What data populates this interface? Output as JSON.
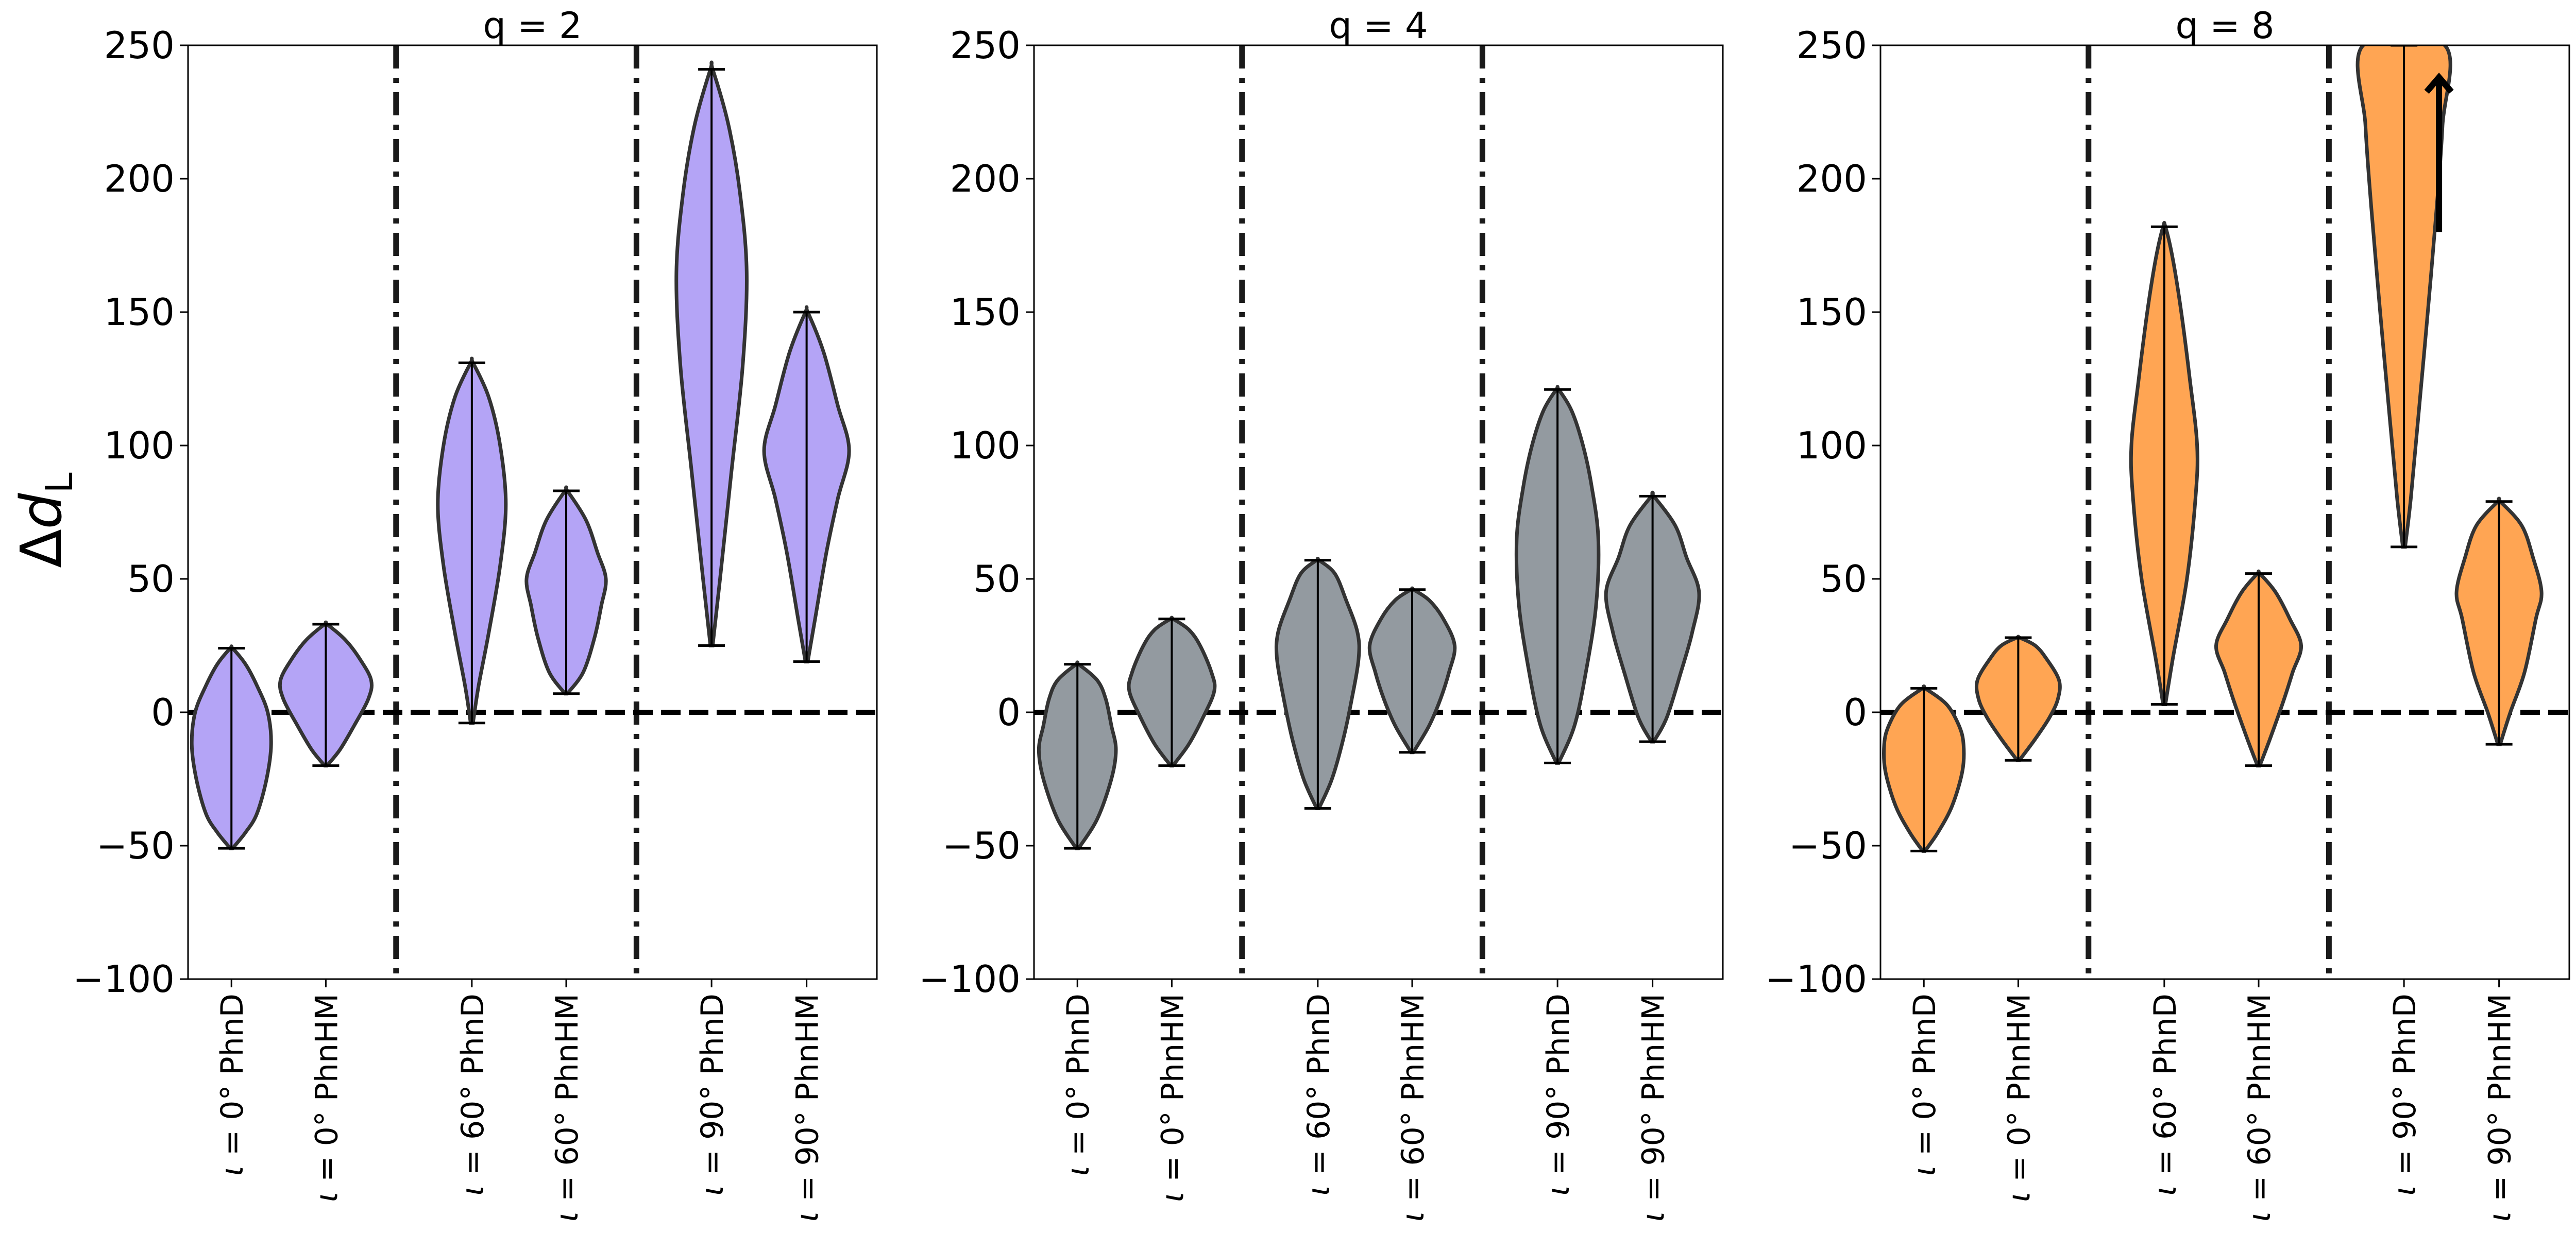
{
  "figure": {
    "ylabel_symbol": "Δ",
    "ylabel_var": "d",
    "ylabel_sub": "L"
  },
  "chart_data": [
    {
      "type": "violin",
      "title": "q = 2",
      "ylim": [
        -100,
        250
      ],
      "yticks": [
        -100,
        -50,
        0,
        50,
        100,
        150,
        200,
        250
      ],
      "ytick_labels": [
        "−100",
        "−50",
        "0",
        "50",
        "100",
        "150",
        "200",
        "250"
      ],
      "color": "#b4a4f6",
      "reference_line": 0,
      "groups": [
        "ι = 0°",
        "ι = 60°",
        "ι = 90°"
      ],
      "categories": [
        {
          "label_var": "ι",
          "label_rest": " = 0° PhnD",
          "min": -51,
          "max": 24,
          "profile": [
            [
              -51,
              0.02
            ],
            [
              -45,
              0.25
            ],
            [
              -38,
              0.45
            ],
            [
              -25,
              0.62
            ],
            [
              -12,
              0.7
            ],
            [
              0,
              0.64
            ],
            [
              10,
              0.45
            ],
            [
              18,
              0.25
            ],
            [
              24,
              0.02
            ]
          ]
        },
        {
          "label_var": "ι",
          "label_rest": " = 0° PhnHM",
          "min": -20,
          "max": 33,
          "profile": [
            [
              -20,
              0.02
            ],
            [
              -14,
              0.25
            ],
            [
              -5,
              0.5
            ],
            [
              5,
              0.75
            ],
            [
              12,
              0.8
            ],
            [
              20,
              0.6
            ],
            [
              27,
              0.35
            ],
            [
              33,
              0.02
            ]
          ]
        },
        {
          "label_var": "ι",
          "label_rest": " = 60° PhnD",
          "min": -4,
          "max": 131,
          "profile": [
            [
              -4,
              0.02
            ],
            [
              10,
              0.12
            ],
            [
              30,
              0.3
            ],
            [
              55,
              0.5
            ],
            [
              78,
              0.6
            ],
            [
              100,
              0.5
            ],
            [
              118,
              0.3
            ],
            [
              131,
              0.02
            ]
          ]
        },
        {
          "label_var": "ι",
          "label_rest": " = 60° PhnHM",
          "min": 7,
          "max": 83,
          "profile": [
            [
              7,
              0.02
            ],
            [
              15,
              0.3
            ],
            [
              28,
              0.5
            ],
            [
              40,
              0.62
            ],
            [
              50,
              0.7
            ],
            [
              60,
              0.55
            ],
            [
              72,
              0.35
            ],
            [
              83,
              0.02
            ]
          ]
        },
        {
          "label_var": "ι",
          "label_rest": " = 90° PhnD",
          "min": 25,
          "max": 241,
          "profile": [
            [
              25,
              0.02
            ],
            [
              50,
              0.15
            ],
            [
              90,
              0.35
            ],
            [
              130,
              0.55
            ],
            [
              165,
              0.62
            ],
            [
              195,
              0.5
            ],
            [
              220,
              0.3
            ],
            [
              241,
              0.02
            ]
          ]
        },
        {
          "label_var": "ι",
          "label_rest": " = 90° PhnHM",
          "min": 19,
          "max": 150,
          "profile": [
            [
              19,
              0.02
            ],
            [
              35,
              0.15
            ],
            [
              60,
              0.35
            ],
            [
              80,
              0.55
            ],
            [
              98,
              0.75
            ],
            [
              115,
              0.55
            ],
            [
              135,
              0.3
            ],
            [
              150,
              0.02
            ]
          ]
        }
      ]
    },
    {
      "type": "violin",
      "title": "q = 4",
      "ylim": [
        -100,
        250
      ],
      "yticks": [
        -100,
        -50,
        0,
        50,
        100,
        150,
        200,
        250
      ],
      "ytick_labels": [
        "−100",
        "−50",
        "0",
        "50",
        "100",
        "150",
        "200",
        "250"
      ],
      "color": "#939aa0",
      "reference_line": 0,
      "groups": [
        "ι = 0°",
        "ι = 60°",
        "ι = 90°"
      ],
      "categories": [
        {
          "label_var": "ι",
          "label_rest": " = 0° PhnD",
          "min": -51,
          "max": 18,
          "profile": [
            [
              -51,
              0.02
            ],
            [
              -40,
              0.35
            ],
            [
              -25,
              0.6
            ],
            [
              -14,
              0.68
            ],
            [
              -5,
              0.6
            ],
            [
              5,
              0.5
            ],
            [
              12,
              0.35
            ],
            [
              18,
              0.02
            ]
          ]
        },
        {
          "label_var": "ι",
          "label_rest": " = 0° PhnHM",
          "min": -20,
          "max": 35,
          "profile": [
            [
              -20,
              0.02
            ],
            [
              -12,
              0.3
            ],
            [
              -2,
              0.55
            ],
            [
              8,
              0.75
            ],
            [
              15,
              0.7
            ],
            [
              25,
              0.5
            ],
            [
              31,
              0.3
            ],
            [
              35,
              0.02
            ]
          ]
        },
        {
          "label_var": "ι",
          "label_rest": " = 60° PhnD",
          "min": -36,
          "max": 57,
          "profile": [
            [
              -36,
              0.02
            ],
            [
              -25,
              0.25
            ],
            [
              -10,
              0.45
            ],
            [
              5,
              0.6
            ],
            [
              20,
              0.72
            ],
            [
              30,
              0.7
            ],
            [
              42,
              0.5
            ],
            [
              52,
              0.3
            ],
            [
              57,
              0.02
            ]
          ]
        },
        {
          "label_var": "ι",
          "label_rest": " = 60° PhnHM",
          "min": -15,
          "max": 46,
          "profile": [
            [
              -15,
              0.02
            ],
            [
              -5,
              0.3
            ],
            [
              5,
              0.5
            ],
            [
              15,
              0.65
            ],
            [
              25,
              0.75
            ],
            [
              35,
              0.55
            ],
            [
              42,
              0.3
            ],
            [
              46,
              0.02
            ]
          ]
        },
        {
          "label_var": "ι",
          "label_rest": " = 90° PhnD",
          "min": -19,
          "max": 121,
          "profile": [
            [
              -19,
              0.02
            ],
            [
              -5,
              0.3
            ],
            [
              15,
              0.5
            ],
            [
              40,
              0.68
            ],
            [
              65,
              0.72
            ],
            [
              85,
              0.6
            ],
            [
              100,
              0.45
            ],
            [
              113,
              0.25
            ],
            [
              121,
              0.02
            ]
          ]
        },
        {
          "label_var": "ι",
          "label_rest": " = 90° PhnHM",
          "min": -11,
          "max": 81,
          "profile": [
            [
              -11,
              0.02
            ],
            [
              -2,
              0.25
            ],
            [
              15,
              0.5
            ],
            [
              30,
              0.7
            ],
            [
              45,
              0.82
            ],
            [
              58,
              0.6
            ],
            [
              70,
              0.4
            ],
            [
              81,
              0.02
            ]
          ]
        }
      ]
    },
    {
      "type": "violin",
      "title": "q = 8",
      "ylim": [
        -100,
        250
      ],
      "yticks": [
        -100,
        -50,
        0,
        50,
        100,
        150,
        200,
        250
      ],
      "ytick_labels": [
        "−100",
        "−50",
        "0",
        "50",
        "100",
        "150",
        "200",
        "250"
      ],
      "color": "#ffa553",
      "reference_line": 0,
      "arrow_on_category": 4,
      "groups": [
        "ι = 0°",
        "ι = 60°",
        "ι = 90°"
      ],
      "categories": [
        {
          "label_var": "ι",
          "label_rest": " = 0° PhnD",
          "min": -52,
          "max": 9,
          "profile": [
            [
              -52,
              0.02
            ],
            [
              -45,
              0.25
            ],
            [
              -35,
              0.5
            ],
            [
              -22,
              0.68
            ],
            [
              -12,
              0.7
            ],
            [
              -5,
              0.62
            ],
            [
              3,
              0.4
            ],
            [
              9,
              0.02
            ]
          ]
        },
        {
          "label_var": "ι",
          "label_rest": " = 0° PhnHM",
          "min": -18,
          "max": 28,
          "profile": [
            [
              -18,
              0.02
            ],
            [
              -10,
              0.3
            ],
            [
              -2,
              0.55
            ],
            [
              5,
              0.7
            ],
            [
              12,
              0.72
            ],
            [
              20,
              0.5
            ],
            [
              25,
              0.3
            ],
            [
              28,
              0.02
            ]
          ]
        },
        {
          "label_var": "ι",
          "label_rest": " = 60° PhnD",
          "min": 3,
          "max": 182,
          "profile": [
            [
              3,
              0.02
            ],
            [
              20,
              0.15
            ],
            [
              50,
              0.4
            ],
            [
              80,
              0.55
            ],
            [
              100,
              0.58
            ],
            [
              125,
              0.45
            ],
            [
              150,
              0.3
            ],
            [
              170,
              0.15
            ],
            [
              182,
              0.02
            ]
          ]
        },
        {
          "label_var": "ι",
          "label_rest": " = 60° PhnHM",
          "min": -20,
          "max": 52,
          "profile": [
            [
              -20,
              0.02
            ],
            [
              -10,
              0.2
            ],
            [
              5,
              0.45
            ],
            [
              15,
              0.6
            ],
            [
              25,
              0.75
            ],
            [
              35,
              0.55
            ],
            [
              45,
              0.3
            ],
            [
              52,
              0.02
            ]
          ]
        },
        {
          "label_var": "ι",
          "label_rest": " = 90° PhnD",
          "min": 62,
          "max": 250,
          "profile": [
            [
              62,
              0.02
            ],
            [
              80,
              0.12
            ],
            [
              110,
              0.25
            ],
            [
              150,
              0.42
            ],
            [
              190,
              0.58
            ],
            [
              220,
              0.68
            ],
            [
              250,
              0.72
            ]
          ]
        },
        {
          "label_var": "ι",
          "label_rest": " = 90° PhnHM",
          "min": -12,
          "max": 79,
          "profile": [
            [
              -12,
              0.02
            ],
            [
              0,
              0.2
            ],
            [
              15,
              0.45
            ],
            [
              35,
              0.65
            ],
            [
              45,
              0.75
            ],
            [
              58,
              0.6
            ],
            [
              70,
              0.4
            ],
            [
              79,
              0.02
            ]
          ]
        }
      ]
    }
  ]
}
